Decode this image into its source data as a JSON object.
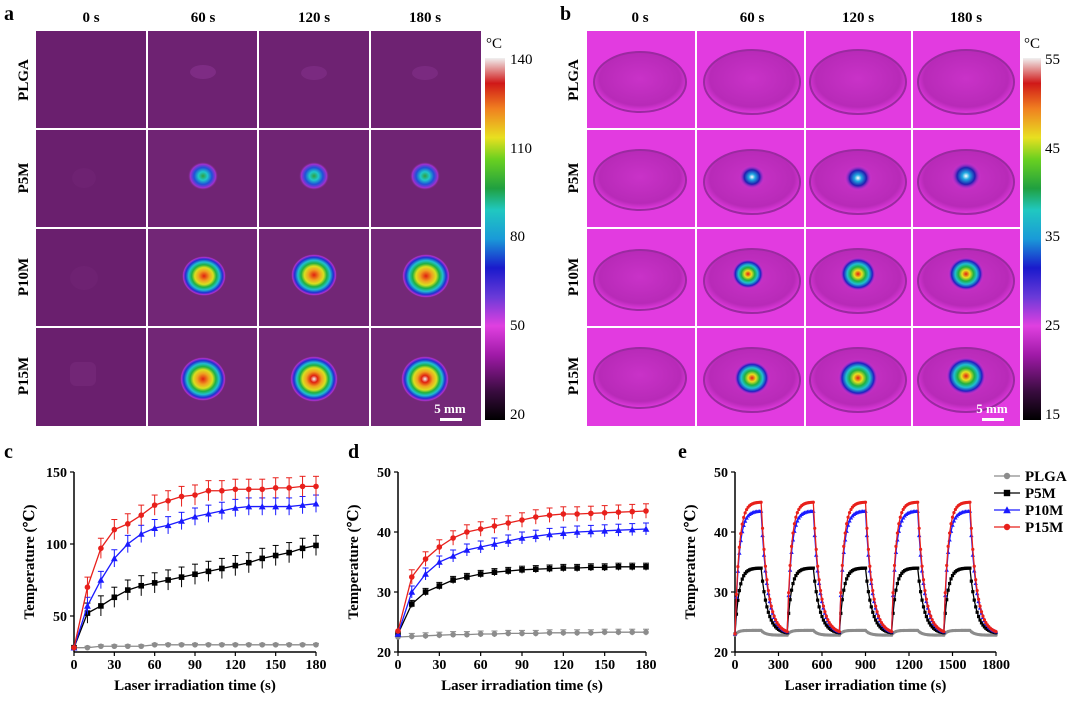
{
  "panels": {
    "a": {
      "label": "a",
      "time_headers": [
        "0 s",
        "60 s",
        "120 s",
        "180 s"
      ],
      "row_labels": [
        "PLGA",
        "P5M",
        "P10M",
        "P15M"
      ],
      "colorbar": {
        "unit": "°C",
        "ticks": [
          "140",
          "110",
          "80",
          "50",
          "20"
        ]
      },
      "scale_bar": "5 mm",
      "colors": {
        "background": "#6a1f6e",
        "cool": "#7a2a80",
        "hot": "#ff2a1a"
      }
    },
    "b": {
      "label": "b",
      "time_headers": [
        "0 s",
        "60 s",
        "120 s",
        "180 s"
      ],
      "row_labels": [
        "PLGA",
        "P5M",
        "P10M",
        "P15M"
      ],
      "colorbar": {
        "unit": "°C",
        "ticks": [
          "55",
          "45",
          "35",
          "25",
          "15"
        ]
      },
      "scale_bar": "5 mm",
      "colors": {
        "background": "#e23be0",
        "rim": "#b22ab8"
      }
    },
    "c": {
      "label": "c"
    },
    "d": {
      "label": "d"
    },
    "e": {
      "label": "e"
    }
  },
  "chart_data": [
    {
      "id": "c",
      "type": "line",
      "xlabel": "Laser irradiation time (s)",
      "ylabel": "Temperature (℃)",
      "xlim": [
        0,
        180
      ],
      "ylim": [
        25,
        150
      ],
      "xticks": [
        0,
        30,
        60,
        90,
        120,
        150,
        180
      ],
      "yticks": [
        50,
        100,
        150
      ],
      "x": [
        0,
        10,
        20,
        30,
        40,
        50,
        60,
        70,
        80,
        90,
        100,
        110,
        120,
        130,
        140,
        150,
        160,
        170,
        180
      ],
      "series": [
        {
          "name": "PLGA",
          "color": "#8c8c8c",
          "marker": "circle",
          "values": [
            28,
            28,
            29,
            29,
            29,
            29,
            30,
            30,
            30,
            30,
            30,
            30,
            30,
            30,
            30,
            30,
            30,
            30,
            30
          ],
          "error": 1
        },
        {
          "name": "P5M",
          "color": "#000000",
          "marker": "square",
          "values": [
            28,
            52,
            57,
            63,
            68,
            71,
            73,
            75,
            77,
            79,
            81,
            83,
            85,
            87,
            90,
            92,
            94,
            97,
            99
          ],
          "error": 7
        },
        {
          "name": "P10M",
          "color": "#1a1aff",
          "marker": "triangle",
          "values": [
            28,
            57,
            75,
            90,
            100,
            107,
            111,
            113,
            116,
            119,
            121,
            123,
            125,
            126,
            126,
            126,
            126,
            127,
            128
          ],
          "error": 6
        },
        {
          "name": "P15M",
          "color": "#e8201b",
          "marker": "circle",
          "values": [
            28,
            70,
            97,
            110,
            114,
            120,
            127,
            130,
            133,
            134,
            137,
            137,
            138,
            138,
            138,
            139,
            139,
            140,
            140
          ],
          "error": 7
        }
      ]
    },
    {
      "id": "d",
      "type": "line",
      "xlabel": "Laser irradiation time (s)",
      "ylabel": "Temperature (℃)",
      "xlim": [
        0,
        180
      ],
      "ylim": [
        20,
        50
      ],
      "xticks": [
        0,
        30,
        60,
        90,
        120,
        150,
        180
      ],
      "yticks": [
        20,
        30,
        40,
        50
      ],
      "x": [
        0,
        10,
        20,
        30,
        40,
        50,
        60,
        70,
        80,
        90,
        100,
        110,
        120,
        130,
        140,
        150,
        160,
        170,
        180
      ],
      "series": [
        {
          "name": "PLGA",
          "color": "#8c8c8c",
          "marker": "circle",
          "values": [
            22.5,
            22.6,
            22.7,
            22.8,
            22.9,
            22.9,
            23,
            23,
            23.1,
            23.1,
            23.1,
            23.2,
            23.2,
            23.2,
            23.2,
            23.3,
            23.3,
            23.3,
            23.3
          ],
          "error": 0.5
        },
        {
          "name": "P5M",
          "color": "#000000",
          "marker": "square",
          "values": [
            23,
            28,
            30,
            31,
            32,
            32.5,
            33,
            33.3,
            33.5,
            33.7,
            33.8,
            33.9,
            34,
            34,
            34.1,
            34.1,
            34.2,
            34.2,
            34.2
          ],
          "error": 0.6
        },
        {
          "name": "P10M",
          "color": "#1a1aff",
          "marker": "triangle",
          "values": [
            23,
            30,
            33,
            35,
            36,
            37,
            37.5,
            38,
            38.5,
            39,
            39.3,
            39.6,
            39.8,
            40,
            40.1,
            40.2,
            40.3,
            40.4,
            40.5
          ],
          "error": 1
        },
        {
          "name": "P15M",
          "color": "#e8201b",
          "marker": "circle",
          "values": [
            23.5,
            32.5,
            35.5,
            37.5,
            39,
            40,
            40.5,
            41,
            41.5,
            42,
            42.5,
            42.8,
            43,
            43,
            43.1,
            43.2,
            43.3,
            43.4,
            43.5
          ],
          "error": 1.2
        }
      ]
    },
    {
      "id": "e",
      "type": "line",
      "xlabel": "Laser irradiation time (s)",
      "ylabel": "Temperature (℃)",
      "xlim": [
        0,
        1800
      ],
      "ylim": [
        20,
        50
      ],
      "xticks": [
        0,
        300,
        600,
        900,
        1200,
        1500,
        1800
      ],
      "yticks": [
        20,
        30,
        40,
        50
      ],
      "legend": {
        "position": "top-right",
        "entries": [
          "PLGA",
          "P5M",
          "P10M",
          "P15M"
        ]
      },
      "cycles": 5,
      "cycle_period_s": 360,
      "heating_duration_s": 180,
      "series": [
        {
          "name": "PLGA",
          "color": "#8c8c8c",
          "marker": "circle",
          "baseline": 22.8,
          "peak": 23.6
        },
        {
          "name": "P5M",
          "color": "#000000",
          "marker": "square",
          "baseline": 23,
          "peak": 34
        },
        {
          "name": "P10M",
          "color": "#1a1aff",
          "marker": "triangle",
          "baseline": 23,
          "peak": 43.5
        },
        {
          "name": "P15M",
          "color": "#e8201b",
          "marker": "circle",
          "baseline": 23,
          "peak": 45
        }
      ]
    }
  ]
}
